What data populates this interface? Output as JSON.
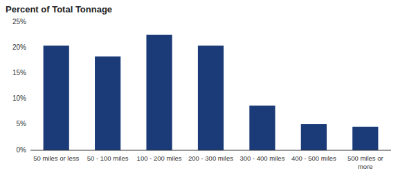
{
  "chart_data": {
    "type": "bar",
    "title": "Percent of Total Tonnage",
    "categories": [
      "50 miles or less",
      "50 - 100 miles",
      "100 - 200 miles",
      "200 - 300 miles",
      "300 - 400 miles",
      "400 - 500 miles",
      "500 miles or\nmore"
    ],
    "values": [
      20.4,
      18.3,
      22.5,
      20.4,
      8.7,
      5.1,
      4.6
    ],
    "color": "#1b3a78",
    "ylim": [
      0,
      25
    ],
    "yticks": [
      {
        "value": 0,
        "label": "0%"
      },
      {
        "value": 5,
        "label": "5%"
      },
      {
        "value": 10,
        "label": "10%"
      },
      {
        "value": 15,
        "label": "15%"
      },
      {
        "value": 20,
        "label": "20%"
      },
      {
        "value": 25,
        "label": "25%"
      }
    ],
    "grid": false
  }
}
